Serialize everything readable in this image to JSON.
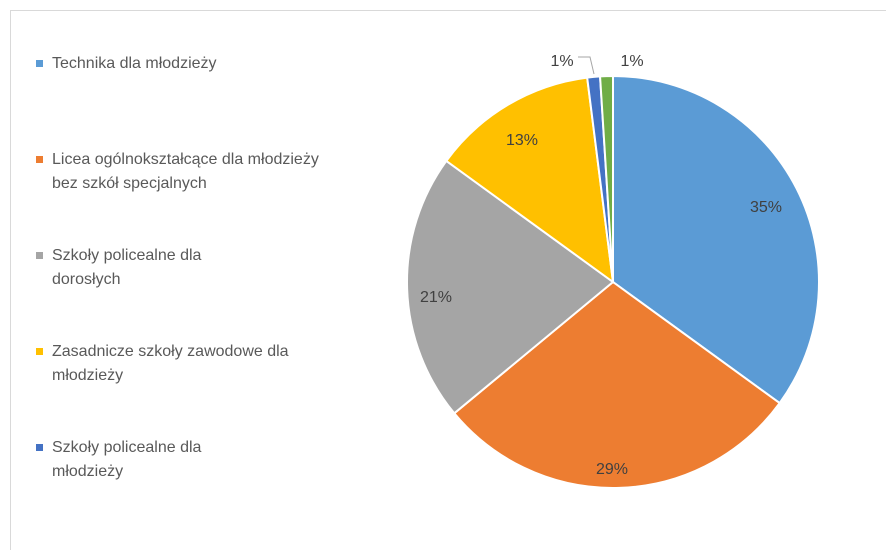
{
  "chart_data": {
    "type": "pie",
    "categories": [
      "Technika dla młodzieży",
      "Licea ogólnokształcące dla młodzieży bez szkół specjalnych",
      "Szkoły policealne dla dorosłych",
      "Zasadnicze szkoły zawodowe dla młodzieży",
      "Szkoły policealne dla młodzieży",
      ""
    ],
    "values": [
      35,
      29,
      21,
      13,
      1,
      1
    ],
    "labels": [
      "35%",
      "29%",
      "21%",
      "13%",
      "1%",
      "1%"
    ],
    "colors": [
      "#5b9bd5",
      "#ed7d31",
      "#a5a5a5",
      "#ffc000",
      "#4472c4",
      "#70ad47"
    ],
    "legend_position": "left"
  },
  "legend": {
    "items": [
      {
        "label": "Technika dla młodzieży",
        "color": "#5b9bd5"
      },
      {
        "label": "Licea ogólnokształcące dla młodzieży bez szkół specjalnych",
        "color": "#ed7d31"
      },
      {
        "label": "Szkoły policealne dla dorosłych",
        "color": "#a5a5a5"
      },
      {
        "label": "Zasadnicze szkoły zawodowe dla młodzieży",
        "color": "#ffc000"
      },
      {
        "label": "Szkoły policealne dla młodzieży",
        "color": "#4472c4"
      }
    ]
  }
}
